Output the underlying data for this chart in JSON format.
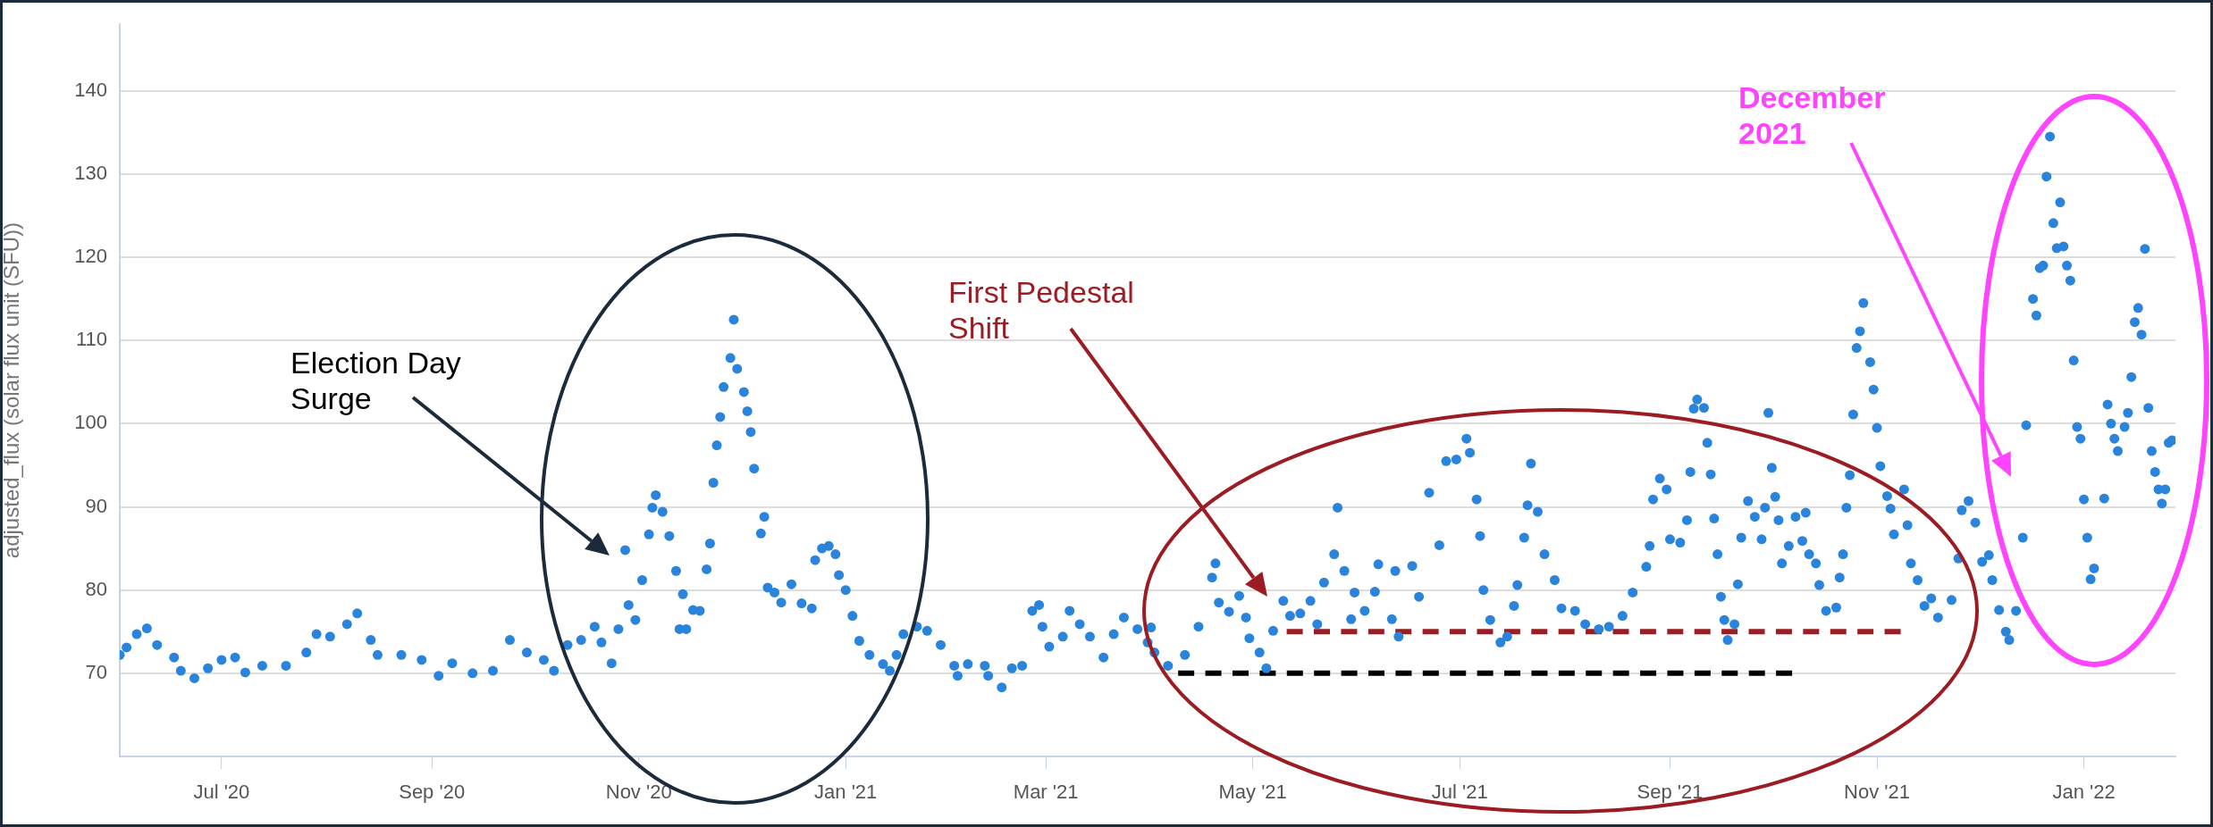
{
  "chart_data": {
    "type": "scatter",
    "ylabel": "adjusted_flux (solar flux unit (SFU))",
    "xlim": [
      "2020-06-01",
      "2022-01-28"
    ],
    "xticks": [
      {
        "value": "2020-07-01",
        "label": "Jul '20"
      },
      {
        "value": "2020-09-01",
        "label": "Sep '20"
      },
      {
        "value": "2020-11-01",
        "label": "Nov '20"
      },
      {
        "value": "2021-01-01",
        "label": "Jan '21"
      },
      {
        "value": "2021-03-01",
        "label": "Mar '21"
      },
      {
        "value": "2021-05-01",
        "label": "May '21"
      },
      {
        "value": "2021-07-01",
        "label": "Jul '21"
      },
      {
        "value": "2021-09-01",
        "label": "Sep '21"
      },
      {
        "value": "2021-11-01",
        "label": "Nov '21"
      },
      {
        "value": "2022-01-01",
        "label": "Jan '22"
      }
    ],
    "ylim": [
      60,
      148
    ],
    "yticks": [
      70,
      80,
      90,
      100,
      110,
      120,
      130,
      140
    ],
    "grid": "y",
    "legend": false,
    "marker": "circle",
    "annotations": [
      "Election Day Surge",
      "First Pedestal Shift",
      "December 2021"
    ],
    "series": [
      {
        "color": "#2a84dc",
        "x": [
          "2020-06-01",
          "2020-06-03",
          "2020-06-06",
          "2020-06-09",
          "2020-06-12",
          "2020-06-17",
          "2020-06-19",
          "2020-06-23",
          "2020-06-27",
          "2020-07-01",
          "2020-07-05",
          "2020-07-08",
          "2020-07-13",
          "2020-07-20",
          "2020-07-26",
          "2020-07-29",
          "2020-08-02",
          "2020-08-07",
          "2020-08-10",
          "2020-08-14",
          "2020-08-16",
          "2020-08-23",
          "2020-08-29",
          "2020-09-03",
          "2020-09-07",
          "2020-09-13",
          "2020-09-19",
          "2020-09-24",
          "2020-09-29",
          "2020-10-04",
          "2020-10-07",
          "2020-10-11",
          "2020-10-15",
          "2020-10-19",
          "2020-10-21",
          "2020-10-24",
          "2020-10-26",
          "2020-10-28",
          "2020-10-29",
          "2020-10-31",
          "2020-11-02",
          "2020-11-04",
          "2020-11-05",
          "2020-11-06",
          "2020-11-08",
          "2020-11-10",
          "2020-11-12",
          "2020-11-13",
          "2020-11-14",
          "2020-11-15",
          "2020-11-17",
          "2020-11-19",
          "2020-11-21",
          "2020-11-22",
          "2020-11-23",
          "2020-11-24",
          "2020-11-25",
          "2020-11-26",
          "2020-11-28",
          "2020-11-29",
          "2020-11-30",
          "2020-12-02",
          "2020-12-03",
          "2020-12-04",
          "2020-12-05",
          "2020-12-07",
          "2020-12-08",
          "2020-12-09",
          "2020-12-11",
          "2020-12-13",
          "2020-12-16",
          "2020-12-19",
          "2020-12-22",
          "2020-12-23",
          "2020-12-25",
          "2020-12-27",
          "2020-12-29",
          "2020-12-30",
          "2021-01-01",
          "2021-01-03",
          "2021-01-05",
          "2021-01-08",
          "2021-01-12",
          "2021-01-14",
          "2021-01-16",
          "2021-01-18",
          "2021-01-22",
          "2021-01-25",
          "2021-01-29",
          "2021-02-02",
          "2021-02-03",
          "2021-02-06",
          "2021-02-11",
          "2021-02-12",
          "2021-02-16",
          "2021-02-19",
          "2021-02-22",
          "2021-02-25",
          "2021-02-27",
          "2021-02-28",
          "2021-03-02",
          "2021-03-06",
          "2021-03-08",
          "2021-03-11",
          "2021-03-14",
          "2021-03-18",
          "2021-03-21",
          "2021-03-24",
          "2021-03-28",
          "2021-03-31",
          "2021-04-01",
          "2021-04-02",
          "2021-04-06",
          "2021-04-11",
          "2021-04-15",
          "2021-04-19",
          "2021-04-20",
          "2021-04-21",
          "2021-04-24",
          "2021-04-27",
          "2021-04-29",
          "2021-04-30",
          "2021-05-03",
          "2021-05-05",
          "2021-05-07",
          "2021-05-10",
          "2021-05-12",
          "2021-05-15",
          "2021-05-18",
          "2021-05-20",
          "2021-05-22",
          "2021-05-25",
          "2021-05-26",
          "2021-05-28",
          "2021-05-30",
          "2021-05-31",
          "2021-06-03",
          "2021-06-06",
          "2021-06-07",
          "2021-06-11",
          "2021-06-12",
          "2021-06-13",
          "2021-06-17",
          "2021-06-19",
          "2021-06-22",
          "2021-06-25",
          "2021-06-27",
          "2021-06-30",
          "2021-07-03",
          "2021-07-04",
          "2021-07-06",
          "2021-07-07",
          "2021-07-08",
          "2021-07-10",
          "2021-07-13",
          "2021-07-15",
          "2021-07-17",
          "2021-07-18",
          "2021-07-20",
          "2021-07-21",
          "2021-07-22",
          "2021-07-24",
          "2021-07-26",
          "2021-07-29",
          "2021-07-31",
          "2021-08-04",
          "2021-08-07",
          "2021-08-11",
          "2021-08-14",
          "2021-08-18",
          "2021-08-21",
          "2021-08-25",
          "2021-08-26",
          "2021-08-27",
          "2021-08-29",
          "2021-08-31",
          "2021-09-01",
          "2021-09-04",
          "2021-09-06",
          "2021-09-07",
          "2021-09-08",
          "2021-09-09",
          "2021-09-11",
          "2021-09-12",
          "2021-09-13",
          "2021-09-14",
          "2021-09-15",
          "2021-09-16",
          "2021-09-17",
          "2021-09-18",
          "2021-09-20",
          "2021-09-21",
          "2021-09-22",
          "2021-09-24",
          "2021-09-26",
          "2021-09-28",
          "2021-09-29",
          "2021-09-30",
          "2021-10-01",
          "2021-10-02",
          "2021-10-03",
          "2021-10-04",
          "2021-10-06",
          "2021-10-08",
          "2021-10-10",
          "2021-10-11",
          "2021-10-12",
          "2021-10-14",
          "2021-10-15",
          "2021-10-17",
          "2021-10-20",
          "2021-10-21",
          "2021-10-22",
          "2021-10-23",
          "2021-10-24",
          "2021-10-25",
          "2021-10-26",
          "2021-10-27",
          "2021-10-28",
          "2021-10-30",
          "2021-10-31",
          "2021-11-01",
          "2021-11-02",
          "2021-11-04",
          "2021-11-05",
          "2021-11-06",
          "2021-11-09",
          "2021-11-10",
          "2021-11-11",
          "2021-11-13",
          "2021-11-15",
          "2021-11-17",
          "2021-11-19",
          "2021-11-23",
          "2021-11-25",
          "2021-11-26",
          "2021-11-28",
          "2021-11-30",
          "2021-12-02",
          "2021-12-04",
          "2021-12-05",
          "2021-12-07",
          "2021-12-09",
          "2021-12-10",
          "2021-12-12",
          "2021-12-14",
          "2021-12-15",
          "2021-12-17",
          "2021-12-18",
          "2021-12-19",
          "2021-12-20",
          "2021-12-21",
          "2021-12-22",
          "2021-12-23",
          "2021-12-24",
          "2021-12-25",
          "2021-12-26",
          "2021-12-27",
          "2021-12-28",
          "2021-12-29",
          "2021-12-30",
          "2021-12-31",
          "2022-01-01",
          "2022-01-02",
          "2022-01-03",
          "2022-01-04",
          "2022-01-07",
          "2022-01-08",
          "2022-01-09",
          "2022-01-10",
          "2022-01-11",
          "2022-01-13",
          "2022-01-14",
          "2022-01-15",
          "2022-01-16",
          "2022-01-17",
          "2022-01-18",
          "2022-01-19",
          "2022-01-20",
          "2022-01-21",
          "2022-01-22",
          "2022-01-23",
          "2022-01-24",
          "2022-01-25",
          "2022-01-26",
          "2022-01-27"
        ],
        "values": [
          72.2,
          73.1,
          74.7,
          75.4,
          73.4,
          71.9,
          70.3,
          69.4,
          70.6,
          71.6,
          71.9,
          70.1,
          70.9,
          70.9,
          72.5,
          74.7,
          74.4,
          75.9,
          77.2,
          74.0,
          72.2,
          72.2,
          71.6,
          69.7,
          71.2,
          70.0,
          70.3,
          74.0,
          72.5,
          71.6,
          70.3,
          73.4,
          74.0,
          75.6,
          73.7,
          71.2,
          75.3,
          84.8,
          78.2,
          76.4,
          81.2,
          86.7,
          89.9,
          91.4,
          89.4,
          86.5,
          82.3,
          75.3,
          79.5,
          75.3,
          77.6,
          77.5,
          82.5,
          85.6,
          92.9,
          97.4,
          100.8,
          104.4,
          107.9,
          112.5,
          106.6,
          103.8,
          101.5,
          99.0,
          94.6,
          86.8,
          88.8,
          80.3,
          79.7,
          78.5,
          80.7,
          78.4,
          77.8,
          83.6,
          85.0,
          85.3,
          84.3,
          81.8,
          80.0,
          76.9,
          73.9,
          72.2,
          71.1,
          70.3,
          72.2,
          74.7,
          75.6,
          75.1,
          73.4,
          70.9,
          69.7,
          71.1,
          70.9,
          69.7,
          68.3,
          70.6,
          70.9,
          77.5,
          78.2,
          75.6,
          73.2,
          74.4,
          77.5,
          75.9,
          74.4,
          71.9,
          74.7,
          76.7,
          75.3,
          73.7,
          75.5,
          72.5,
          70.9,
          72.2,
          75.6,
          81.5,
          83.2,
          78.5,
          77.4,
          79.3,
          76.7,
          74.2,
          72.5,
          70.6,
          75.1,
          78.7,
          76.9,
          77.2,
          78.7,
          75.9,
          80.9,
          84.3,
          89.9,
          82.3,
          76.5,
          79.7,
          77.5,
          79.8,
          83.1,
          76.5,
          82.3,
          74.4,
          82.9,
          79.2,
          91.7,
          85.4,
          95.5,
          95.7,
          98.2,
          96.5,
          90.9,
          86.5,
          80.0,
          76.4,
          73.7,
          74.4,
          78.1,
          80.6,
          86.3,
          90.2,
          95.2,
          89.4,
          84.3,
          81.2,
          77.8,
          77.5,
          75.9,
          75.3,
          75.6,
          76.9,
          79.7,
          82.8,
          85.3,
          90.9,
          93.4,
          92.1,
          86.1,
          85.7,
          88.4,
          94.2,
          101.8,
          102.9,
          101.9,
          97.7,
          93.9,
          88.6,
          84.3,
          79.2,
          76.4,
          74.0,
          75.9,
          80.7,
          86.3,
          90.7,
          88.8,
          86.1,
          89.9,
          101.3,
          94.7,
          91.2,
          88.4,
          83.2,
          85.3,
          88.8,
          85.9,
          89.3,
          84.3,
          83.2,
          80.6,
          77.5,
          77.9,
          81.5,
          84.3,
          89.9,
          93.8,
          101.1,
          109.1,
          111.1,
          114.5,
          107.4,
          104.1,
          99.5,
          94.9,
          91.3,
          89.8,
          86.7,
          92.1,
          87.8,
          83.2,
          81.2,
          78.1,
          79.0,
          76.7,
          78.8,
          83.8,
          89.6,
          90.7,
          88.1,
          83.4,
          84.2,
          81.2,
          77.6,
          75.0,
          74.0,
          77.5,
          86.3,
          99.8,
          115.0,
          113.0,
          118.7,
          119.0,
          129.7,
          134.5,
          124.1,
          121.1,
          126.6,
          121.3,
          119.0,
          117.2,
          107.6,
          99.6,
          98.2,
          90.9,
          86.3,
          81.3,
          82.6,
          91.0,
          102.3,
          100.0,
          98.2,
          96.7,
          99.6,
          101.3,
          105.6,
          112.2,
          113.9,
          110.7,
          121.0,
          101.9,
          96.7,
          94.2,
          92.1,
          90.4,
          92.1,
          97.7,
          98.0
        ]
      },
      {
        "type": "line",
        "color": "#9b1c22",
        "line_style": "dashed",
        "marker": "none",
        "x": [
          "2021-05-11",
          "2021-11-08"
        ],
        "values": [
          75,
          75
        ]
      },
      {
        "type": "line",
        "color": "#000000",
        "line_style": "dashed",
        "marker": "none",
        "x": [
          "2021-04-09",
          "2021-10-07"
        ],
        "values": [
          70,
          70
        ]
      }
    ]
  }
}
